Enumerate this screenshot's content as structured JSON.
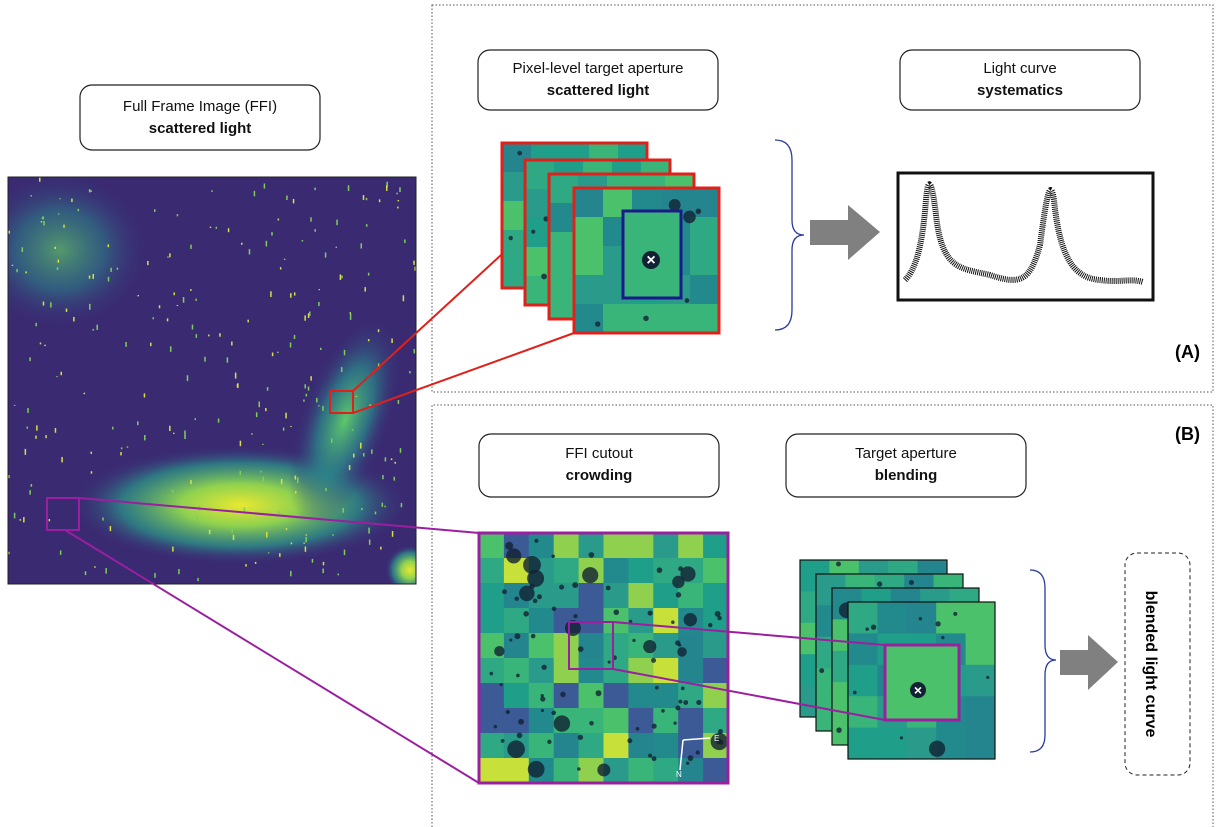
{
  "ffi": {
    "title": "Full Frame Image (FFI)",
    "subtitle": "scattered light"
  },
  "panel_a": {
    "label": "(A)",
    "aperture": {
      "title": "Pixel-level target aperture",
      "subtitle": "scattered light"
    },
    "light_curve": {
      "title": "Light curve",
      "subtitle": "systematics"
    }
  },
  "panel_b": {
    "label": "(B)",
    "cutout": {
      "title": "FFI cutout",
      "subtitle": "crowding"
    },
    "compass": {
      "east": "E",
      "north": "N"
    },
    "aperture": {
      "title": "Target aperture",
      "subtitle": "blending"
    },
    "result": "blended light curve"
  }
}
